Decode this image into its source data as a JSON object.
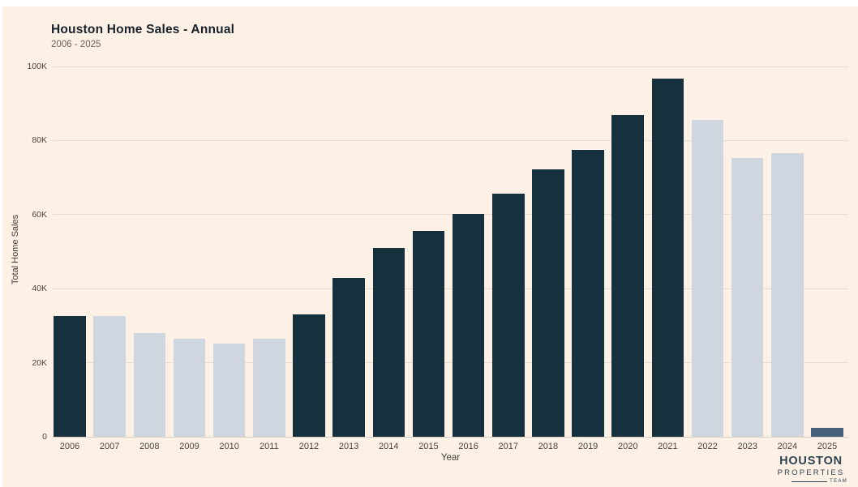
{
  "page": {
    "background": "#ffffff",
    "panel_background": "#fdf0e5"
  },
  "chart": {
    "title": "Houston Home Sales - Annual",
    "subtitle": "2006 - 2025",
    "ylabel": "Total Home Sales",
    "xlabel": "Year"
  },
  "chart_data": {
    "type": "bar",
    "title": "Houston Home Sales - Annual",
    "subtitle": "2006 - 2025",
    "xlabel": "Year",
    "ylabel": "Total Home Sales",
    "ylim": [
      0,
      100000
    ],
    "grid": true,
    "yticks": [
      {
        "value": 0,
        "label": "0"
      },
      {
        "value": 20000,
        "label": "20K"
      },
      {
        "value": 40000,
        "label": "40K"
      },
      {
        "value": 60000,
        "label": "60K"
      },
      {
        "value": 80000,
        "label": "80K"
      },
      {
        "value": 100000,
        "label": "100K"
      }
    ],
    "categories": [
      "2006",
      "2007",
      "2008",
      "2009",
      "2010",
      "2011",
      "2012",
      "2013",
      "2014",
      "2015",
      "2016",
      "2017",
      "2018",
      "2019",
      "2020",
      "2021",
      "2022",
      "2023",
      "2024",
      "2025"
    ],
    "values": [
      32700,
      32600,
      28100,
      26400,
      25100,
      26400,
      33000,
      42900,
      51000,
      55500,
      60200,
      65600,
      72300,
      77500,
      86800,
      96800,
      85500,
      75200,
      76500,
      2400
    ],
    "bar_color_keys": [
      "dark",
      "light",
      "light",
      "light",
      "light",
      "light",
      "dark",
      "dark",
      "dark",
      "dark",
      "dark",
      "dark",
      "dark",
      "dark",
      "dark",
      "dark",
      "light",
      "light",
      "light",
      "slate"
    ],
    "palette": {
      "dark": "#17303d",
      "light": "#cfd6e0",
      "slate": "#456078",
      "gridline": "#e6ddd4",
      "baseline": "#d7cec5"
    }
  },
  "logo": {
    "line1": "HOUSTON",
    "line2": "PROPERTIES",
    "line3": "TEAM"
  }
}
